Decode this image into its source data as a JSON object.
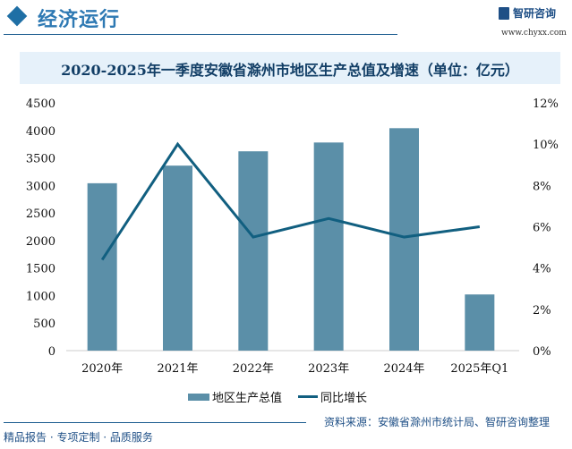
{
  "header": {
    "section_title": "经济运行",
    "brand": "智研咨询",
    "url": "www.chyxx.com"
  },
  "chart_data": {
    "type": "bar+line",
    "title": "2020-2025年一季度安徽省滁州市地区生产总值及增速（单位：亿元）",
    "categories": [
      "2020年",
      "2021年",
      "2022年",
      "2023年",
      "2024年",
      "2025年Q1"
    ],
    "series": [
      {
        "name": "地区生产总值",
        "type": "bar",
        "axis": "left",
        "color": "#5b8fa8",
        "values": [
          3040,
          3360,
          3620,
          3780,
          4040,
          1020
        ]
      },
      {
        "name": "同比增长",
        "type": "line",
        "axis": "right",
        "color": "#115f80",
        "values": [
          4.4,
          10.0,
          5.5,
          6.4,
          5.5,
          6.0
        ]
      }
    ],
    "left_axis": {
      "ylim": [
        0,
        4500
      ],
      "ticks": [
        "0",
        "500",
        "1000",
        "1500",
        "2000",
        "2500",
        "3000",
        "3500",
        "4000",
        "4500"
      ]
    },
    "right_axis": {
      "ylim": [
        0,
        12
      ],
      "ticks": [
        "0%",
        "2%",
        "4%",
        "6%",
        "8%",
        "10%",
        "12%"
      ]
    },
    "grid": false,
    "legend": "bottom"
  },
  "footer": {
    "slogan": "精品报告 · 专项定制 · 品质服务",
    "source": "资料来源：安徽省滁州市统计局、智研咨询整理"
  }
}
